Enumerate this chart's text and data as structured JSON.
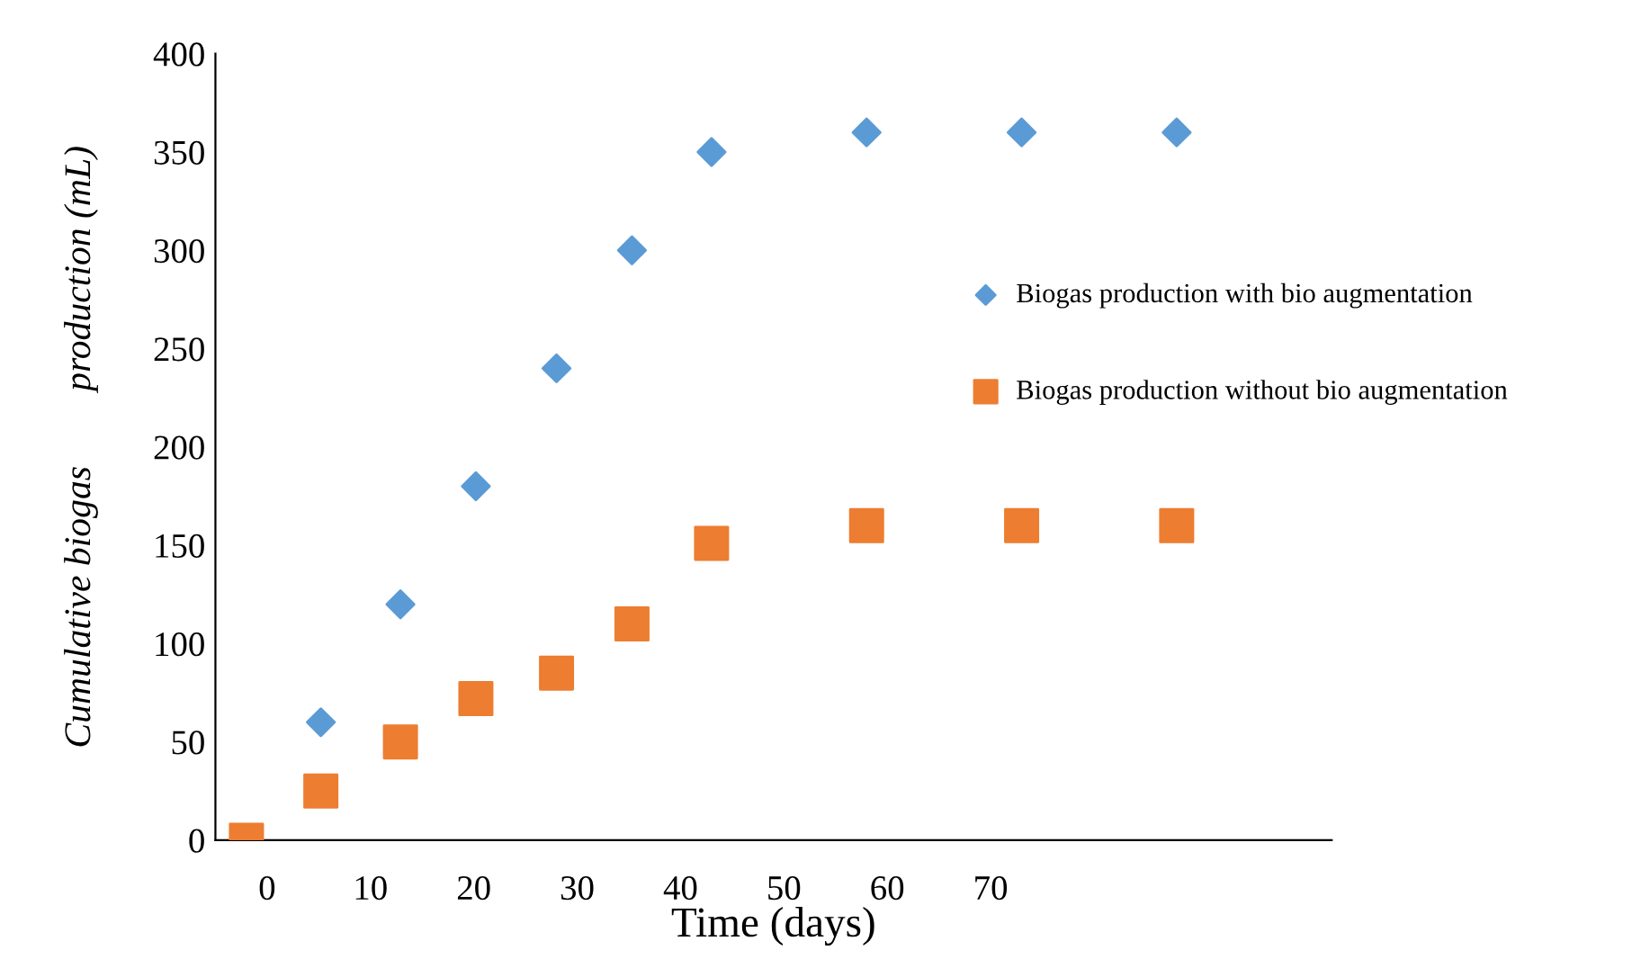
{
  "chart_data": {
    "type": "scatter",
    "xlabel": "Time (days)",
    "ylabel": "Cumulative biogas        production (mL)",
    "x": [
      -2,
      5.2,
      12.9,
      20.2,
      28,
      35.3,
      43,
      58,
      73,
      88
    ],
    "series": [
      {
        "name": "Biogas production with bio augmentation",
        "color": "#5b9bd5",
        "marker": "diamond",
        "values": [
          null,
          60,
          120,
          180,
          240,
          300,
          350,
          360,
          360,
          360
        ]
      },
      {
        "name": "Biogas production without bio augmentation",
        "color": "#ed7d31",
        "marker": "square",
        "values": [
          0,
          25,
          50,
          72,
          85,
          110,
          151,
          160,
          160,
          160
        ]
      }
    ],
    "xlim": [
      -5,
      103
    ],
    "xticks": [
      0,
      10,
      20,
      30,
      40,
      50,
      60,
      70
    ],
    "ylim": [
      0,
      400
    ],
    "yticks": [
      0,
      50,
      100,
      150,
      200,
      250,
      300,
      350,
      400
    ],
    "grid": false,
    "legend": "right"
  }
}
